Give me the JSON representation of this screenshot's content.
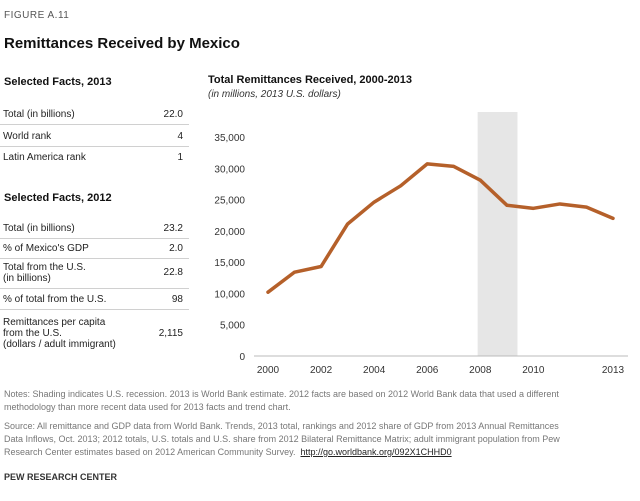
{
  "figure_label": "FIGURE A.11",
  "title": "Remittances Received by Mexico",
  "facts_2013": {
    "heading": "Selected Facts, 2013",
    "rows": [
      {
        "label": "Total (in billions)",
        "value": "22.0"
      },
      {
        "label": "World rank",
        "value": "4"
      },
      {
        "label": "Latin America rank",
        "value": "1"
      }
    ]
  },
  "facts_2012": {
    "heading": "Selected Facts, 2012",
    "rows": [
      {
        "label": "Total (in billions)",
        "value": "23.2"
      },
      {
        "label": "% of Mexico's GDP",
        "value": "2.0"
      },
      {
        "label": "Total from the U.S.",
        "label2": "(in billions)",
        "value": "22.8"
      },
      {
        "label": "% of total from the U.S.",
        "value": "98"
      },
      {
        "label": "Remittances per capita",
        "label2": "from the U.S.",
        "label3": "(dollars / adult immigrant)",
        "value": "2,115"
      }
    ]
  },
  "chart_data": {
    "type": "line",
    "title": "Total Remittances Received,  2000-2013",
    "subtitle": "(in millions, 2013 U.S. dollars)",
    "x": [
      2000,
      2001,
      2002,
      2003,
      2004,
      2005,
      2006,
      2007,
      2008,
      2009,
      2010,
      2011,
      2012,
      2013
    ],
    "values": [
      10200,
      13400,
      14300,
      21100,
      24600,
      27200,
      30700,
      30300,
      28100,
      24100,
      23600,
      24300,
      23800,
      22000
    ],
    "ylim": [
      0,
      35000
    ],
    "yticks": [
      0,
      5000,
      10000,
      15000,
      20000,
      25000,
      30000,
      35000
    ],
    "ytick_labels": [
      "0",
      "5,000",
      "10,000",
      "15,000",
      "20,000",
      "25,000",
      "30,000",
      "35,000"
    ],
    "xtick_labels": [
      {
        "year": 2000,
        "label": "2000"
      },
      {
        "year": 2002,
        "label": "2002"
      },
      {
        "year": 2004,
        "label": "2004"
      },
      {
        "year": 2006,
        "label": "2006"
      },
      {
        "year": 2008,
        "label": "2008"
      },
      {
        "year": 2010,
        "label": "2010"
      },
      {
        "year": 2013,
        "label": "2013"
      }
    ],
    "shaded_range": [
      2007.9,
      2009.4
    ],
    "shaded_meaning": "U.S. recession",
    "line_color": "#b5602a",
    "shade_color": "#e6e6e6"
  },
  "notes": {
    "line1": "Notes: Shading indicates U.S. recession. 2013 is World Bank estimate. 2012 facts are based on 2012 World Bank data that used a different",
    "line2": "methodology than more recent data used for 2013 facts and trend chart.",
    "source1": "Source: All remittance and GDP data from World Bank. Trends, 2013 total, rankings and 2012 share of GDP from 2013 Annual Remittances",
    "source2": "Data Inflows, Oct. 2013; 2012 totals, U.S. totals and U.S. share from 2012 Bilateral Remittance Matrix; adult immigrant population from Pew",
    "source3": "Research Center estimates based on 2012 American Community Survey.",
    "link": "http://go.worldbank.org/092X1CHHD0"
  },
  "footer": "PEW RESEARCH CENTER"
}
